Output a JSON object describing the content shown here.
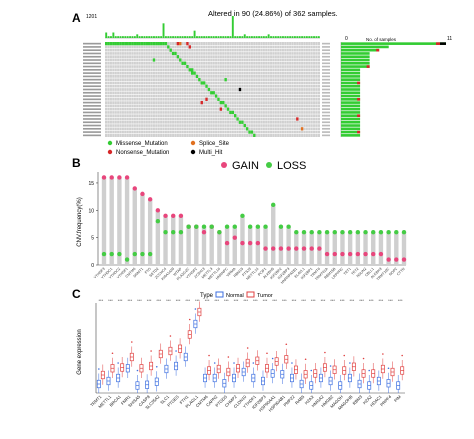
{
  "panels": {
    "A": {
      "label": "A",
      "title": "Altered in 90 (24.86%) of 362 samples.",
      "top_axis_max": "1201",
      "right_axis_label": "No. of samples",
      "right_axis_ticks": [
        "0",
        "11"
      ],
      "legend": [
        {
          "label": "Missense_Mutation",
          "color": "#33cc33"
        },
        {
          "label": "Splice_Site",
          "color": "#e07020"
        },
        {
          "label": "Nonsense_Mutation",
          "color": "#d62728"
        },
        {
          "label": "Multi_Hit",
          "color": "#000000"
        }
      ],
      "right_bar_values": [
        11,
        5,
        4,
        3,
        3,
        3,
        3,
        3,
        2,
        2,
        2,
        2,
        2,
        2,
        2,
        2,
        2,
        2,
        2,
        2,
        2,
        2,
        2,
        2,
        2,
        2,
        2,
        2,
        2
      ],
      "top_bar_values": [
        3,
        1,
        1,
        3,
        1,
        1,
        1,
        1,
        1,
        1,
        1,
        1,
        1,
        2,
        1,
        1,
        1,
        1,
        1,
        1,
        1,
        1,
        1,
        1,
        8,
        1,
        1,
        1,
        1,
        1,
        1,
        1,
        1,
        1,
        1,
        1,
        1,
        4,
        1,
        1,
        1,
        1,
        1,
        1,
        1,
        1,
        1,
        1,
        1,
        1,
        1,
        1,
        1,
        12,
        1,
        1,
        1,
        1,
        2,
        1,
        1,
        1,
        1,
        1,
        1,
        1,
        1,
        1,
        2,
        1,
        1,
        1,
        1,
        1,
        1,
        1,
        1,
        1,
        1,
        1,
        1,
        1,
        1,
        1,
        1,
        1,
        1,
        1,
        1,
        1
      ]
    },
    "B": {
      "label": "B",
      "legend": [
        {
          "label": "GAIN",
          "color": "#e8467c"
        },
        {
          "label": "LOSS",
          "color": "#44cc44"
        }
      ],
      "chart_data": {
        "type": "scatter",
        "subtype": "lollipop",
        "ylabel": "CNV.frequency(%)",
        "ylim": [
          0,
          17
        ],
        "yticks": [
          0,
          5,
          10,
          15
        ],
        "categories": [
          "YTHDF3",
          "YTHDC1",
          "YTHDC2",
          "YTHDF1",
          "CMTM6",
          "DNMT1",
          "FTO",
          "SETD2",
          "ZCCHC4",
          "KIAA1429",
          "WTAP",
          "PLA2G2C",
          "YTHDF2",
          "ZC3H13",
          "METTL3",
          "METTL16",
          "HNRNPC",
          "VIRMA",
          "RBM15",
          "FTSJ3",
          "METTL14",
          "PCIF1",
          "ALKBH5",
          "IGF2BP2",
          "IGF2BP3",
          "HNRNPA2B1",
          "ELAVL1",
          "IGF2BP1",
          "TRMT6",
          "TRMT61A",
          "RBM15B",
          "LRPPRC",
          "TET1",
          "TET2",
          "NSUN2",
          "CBLL1",
          "ALKBH3",
          "TRMT10C",
          "NOP2",
          "CTTN"
        ],
        "series": [
          {
            "name": "GAIN",
            "values": [
              16,
              16,
              16,
              16,
              14,
              13,
              12,
              10,
              9,
              9,
              9,
              7,
              7,
              6,
              7,
              6,
              4,
              5,
              4,
              4,
              4,
              3,
              3,
              3,
              3,
              3,
              3,
              3,
              3,
              2,
              2,
              2,
              2,
              2,
              2,
              2,
              2,
              1,
              1,
              1
            ]
          },
          {
            "name": "LOSS",
            "values": [
              2,
              2,
              2,
              1,
              2,
              2,
              2,
              8,
              6,
              6,
              6,
              7,
              7,
              7,
              7,
              6,
              7,
              7,
              9,
              7,
              7,
              7,
              11,
              7,
              7,
              6,
              6,
              6,
              6,
              6,
              6,
              6,
              6,
              6,
              6,
              6,
              6,
              6,
              6,
              6
            ]
          }
        ]
      }
    },
    "C": {
      "label": "C",
      "legend_title": "Type",
      "legend": [
        {
          "label": "Normal",
          "color": "#3d6fe0"
        },
        {
          "label": "Tumor",
          "color": "#e04040"
        }
      ],
      "significance": "***",
      "chart_data": {
        "type": "box",
        "ylabel": "Gene expression",
        "ylim": [
          0,
          12
        ],
        "categories": [
          "TRMT1",
          "METTL1",
          "BRCA1",
          "FMR1",
          "SHISA5",
          "CASP8",
          "SLC35A2",
          "SLC1",
          "PTGES",
          "FTH1",
          "PLAGL1",
          "CMTM6",
          "CAPN2",
          "PTGDS",
          "CHMP2",
          "CLDN10",
          "YTHDF1",
          "IGF2BP3",
          "HSP90AA1",
          "HSP90AB1",
          "PMP22",
          "RAB5",
          "H2AX",
          "HMGA2",
          "HMGB2",
          "MAGOH",
          "MAGOHB",
          "RBM3",
          "H2AZ",
          "HDAC1",
          "PRPF4",
          "PIM"
        ],
        "series": [
          {
            "name": "Normal",
            "medians": [
              1.2,
              1.6,
              2.0,
              3.3,
              1.0,
              1.1,
              1.5,
              3.2,
              3.6,
              4.8,
              9.2,
              2.0,
              2.0,
              1.3,
              2.0,
              2.8,
              2.0,
              1.6,
              2.6,
              2.5,
              2.0,
              1.2,
              1.0,
              2.0,
              1.6,
              1.0,
              2.0,
              1.2,
              1.0,
              1.6,
              1.3,
              1.0
            ]
          },
          {
            "name": "Tumor",
            "medians": [
              2.4,
              3.3,
              3.4,
              4.8,
              3.3,
              3.6,
              5.2,
              5.6,
              5.9,
              7.8,
              10.8,
              3.0,
              3.2,
              2.8,
              3.3,
              4.0,
              4.3,
              3.3,
              4.2,
              4.5,
              3.1,
              2.5,
              2.6,
              3.4,
              3.1,
              3.0,
              3.5,
              2.6,
              2.6,
              3.2,
              2.8,
              3.0
            ]
          }
        ]
      }
    }
  }
}
